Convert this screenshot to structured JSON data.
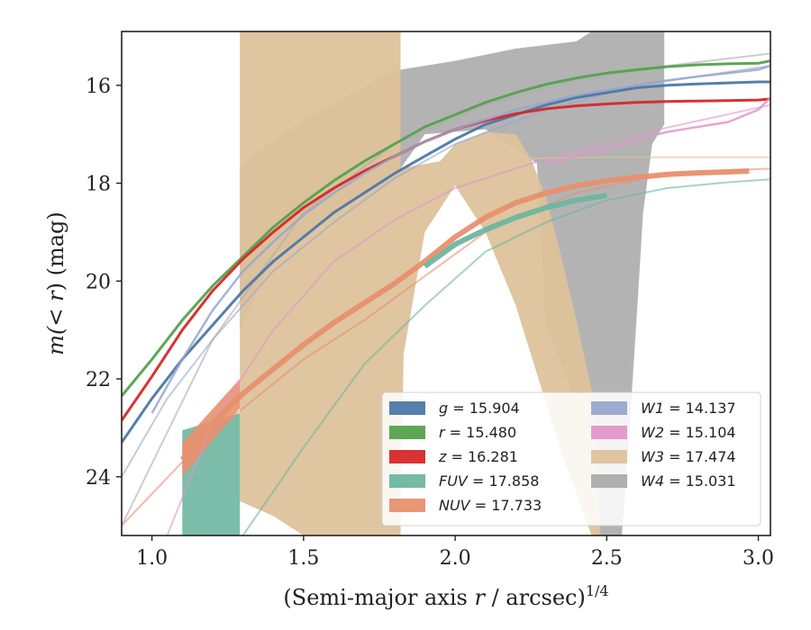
{
  "chart_data": {
    "type": "line",
    "xlabel_main": "(Semi-major axis ",
    "xlabel_var": "r",
    "xlabel_unit": " / arcsec)",
    "xlabel_exp": "1/4",
    "ylabel_main": "m(",
    "ylabel_var": "< r",
    "ylabel_unit": ") (mag)",
    "xlim": [
      0.9,
      3.04
    ],
    "ylim": [
      25.2,
      14.9
    ],
    "x_ticks": [
      1.0,
      1.5,
      2.0,
      2.5,
      3.0
    ],
    "x_tick_labels": [
      "1.0",
      "1.5",
      "2.0",
      "2.5",
      "3.0"
    ],
    "y_ticks": [
      16,
      18,
      20,
      22,
      24
    ],
    "y_tick_labels": [
      "16",
      "18",
      "20",
      "22",
      "24"
    ],
    "legend": {
      "position": "lower-right",
      "entries": [
        {
          "band": "g",
          "value": "15.904",
          "color": "#4C78A8"
        },
        {
          "band": "r",
          "value": "15.480",
          "color": "#54A24B"
        },
        {
          "band": "z",
          "value": "16.281",
          "color": "#D62728"
        },
        {
          "band": "FUV",
          "value": "17.858",
          "color": "#6DB6A0"
        },
        {
          "band": "NUV",
          "value": "17.733",
          "color": "#E8906E"
        },
        {
          "band": "W1",
          "value": "14.137",
          "color": "#97A6CC"
        },
        {
          "band": "W2",
          "value": "15.104",
          "color": "#E096C8"
        },
        {
          "band": "W3",
          "value": "17.474",
          "color": "#DDC29B"
        },
        {
          "band": "W4",
          "value": "15.031",
          "color": "#ABABAB"
        }
      ]
    },
    "series": [
      {
        "name": "g = 15.904",
        "color": "#4C78A8",
        "x": [
          0.9,
          1.0,
          1.1,
          1.2,
          1.3,
          1.4,
          1.5,
          1.6,
          1.7,
          1.8,
          1.9,
          2.0,
          2.1,
          2.2,
          2.3,
          2.4,
          2.5,
          2.6,
          2.7,
          2.8,
          2.9,
          3.0,
          3.04
        ],
        "y": [
          23.3,
          22.4,
          21.6,
          20.9,
          20.2,
          19.6,
          19.1,
          18.6,
          18.2,
          17.8,
          17.45,
          17.1,
          16.8,
          16.6,
          16.4,
          16.25,
          16.15,
          16.05,
          16.0,
          15.97,
          15.95,
          15.93,
          15.93
        ]
      },
      {
        "name": "r = 15.480",
        "color": "#54A24B",
        "x": [
          0.9,
          1.0,
          1.1,
          1.2,
          1.3,
          1.4,
          1.5,
          1.6,
          1.7,
          1.8,
          1.9,
          2.0,
          2.1,
          2.2,
          2.3,
          2.4,
          2.5,
          2.6,
          2.7,
          2.8,
          2.9,
          3.0,
          3.04
        ],
        "y": [
          22.35,
          21.6,
          20.8,
          20.1,
          19.5,
          18.9,
          18.4,
          17.95,
          17.55,
          17.2,
          16.85,
          16.6,
          16.35,
          16.15,
          15.98,
          15.85,
          15.75,
          15.68,
          15.62,
          15.58,
          15.56,
          15.55,
          15.5
        ]
      },
      {
        "name": "z = 16.281",
        "color": "#D62728",
        "x": [
          0.9,
          1.0,
          1.1,
          1.2,
          1.3,
          1.4,
          1.5,
          1.6,
          1.7,
          1.8,
          1.9,
          2.0,
          2.1,
          2.2,
          2.3,
          2.4,
          2.5,
          2.6,
          2.7,
          2.8,
          2.9,
          3.0,
          3.04
        ],
        "y": [
          22.85,
          21.95,
          21.0,
          20.2,
          19.55,
          19.0,
          18.5,
          18.1,
          17.75,
          17.45,
          17.15,
          16.9,
          16.72,
          16.58,
          16.48,
          16.42,
          16.38,
          16.35,
          16.33,
          16.32,
          16.31,
          16.3,
          16.28
        ]
      },
      {
        "name": "NUV = 17.733",
        "color": "#E8906E",
        "x": [
          1.1,
          1.2,
          1.3,
          1.4,
          1.5,
          1.6,
          1.7,
          1.8,
          1.9,
          2.0,
          2.1,
          2.2,
          2.3,
          2.4,
          2.5,
          2.6,
          2.7,
          2.8,
          2.9,
          2.97
        ],
        "y": [
          23.65,
          22.9,
          22.3,
          21.8,
          21.3,
          20.85,
          20.45,
          20.05,
          19.6,
          19.1,
          18.7,
          18.4,
          18.2,
          18.05,
          17.95,
          17.88,
          17.82,
          17.79,
          17.77,
          17.75
        ]
      },
      {
        "name": "FUV = 17.858",
        "color": "#6DB6A0",
        "x": [
          1.9,
          2.0,
          2.1,
          2.2,
          2.3,
          2.4,
          2.5
        ],
        "y": [
          19.7,
          19.25,
          18.95,
          18.7,
          18.5,
          18.35,
          18.25
        ]
      },
      {
        "name": "W1 = 14.137",
        "color": "#97A6CC",
        "x": [
          1.0,
          1.1,
          1.2,
          1.3,
          1.4,
          1.5,
          1.6,
          1.7,
          1.8,
          1.9,
          2.0,
          2.1,
          2.2,
          2.3,
          2.4,
          2.5,
          2.6,
          2.7,
          2.8,
          2.9,
          3.0,
          3.04
        ],
        "y": [
          22.7,
          21.6,
          20.6,
          19.8,
          19.2,
          18.65,
          18.2,
          17.8,
          17.45,
          17.15,
          16.9,
          16.7,
          16.5,
          16.35,
          16.2,
          16.1,
          16.0,
          15.9,
          15.82,
          15.75,
          15.68,
          15.6
        ]
      },
      {
        "name": "W2 = 15.104",
        "color": "#E096C8",
        "x": [
          2.3,
          2.4,
          2.5,
          2.6,
          2.7,
          2.8,
          2.9,
          3.0,
          3.04
        ],
        "y": [
          17.6,
          17.45,
          17.3,
          17.1,
          16.95,
          16.85,
          16.75,
          16.5,
          16.25
        ]
      }
    ]
  }
}
